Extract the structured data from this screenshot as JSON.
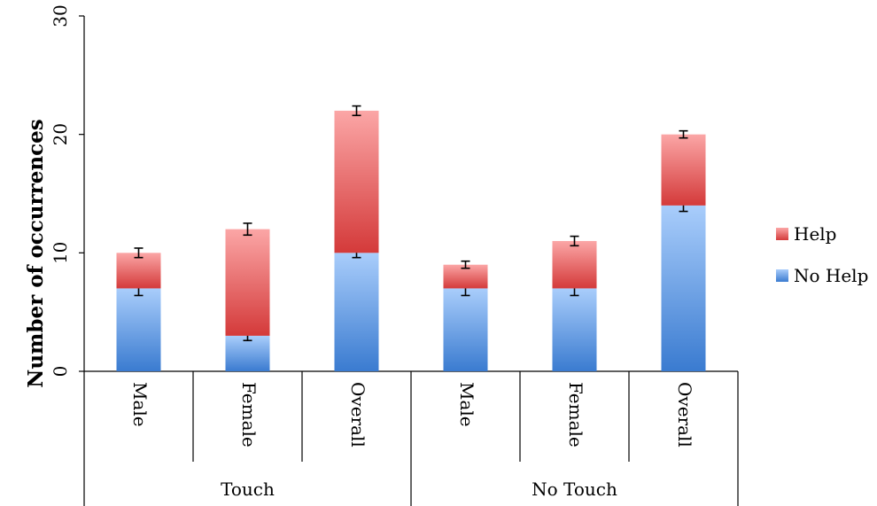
{
  "chart_data": {
    "type": "bar",
    "stacked": true,
    "title": "",
    "xlabel": "",
    "ylabel": "Number of occurrences",
    "ylim": [
      0,
      30
    ],
    "yticks": [
      0,
      10,
      20,
      30
    ],
    "grid": false,
    "legend_position": "right",
    "groups": [
      {
        "label": "Touch",
        "categories": [
          "Male",
          "Female",
          "Overall"
        ]
      },
      {
        "label": "No Touch",
        "categories": [
          "Male",
          "Female",
          "Overall"
        ]
      }
    ],
    "categories": [
      "Male",
      "Female",
      "Overall",
      "Male",
      "Female",
      "Overall"
    ],
    "series": [
      {
        "name": "No Help",
        "color": "#5b9bd5",
        "values": [
          7,
          3,
          10,
          7,
          7,
          14
        ],
        "error": [
          0.6,
          0.4,
          0.4,
          0.6,
          0.6,
          0.5
        ]
      },
      {
        "name": "Help",
        "color": "#e05a5a",
        "values": [
          3,
          9,
          12,
          2,
          4,
          6
        ],
        "error": [
          0.4,
          0.5,
          0.4,
          0.3,
          0.4,
          0.3
        ]
      }
    ],
    "legend": [
      "Help",
      "No Help"
    ]
  }
}
